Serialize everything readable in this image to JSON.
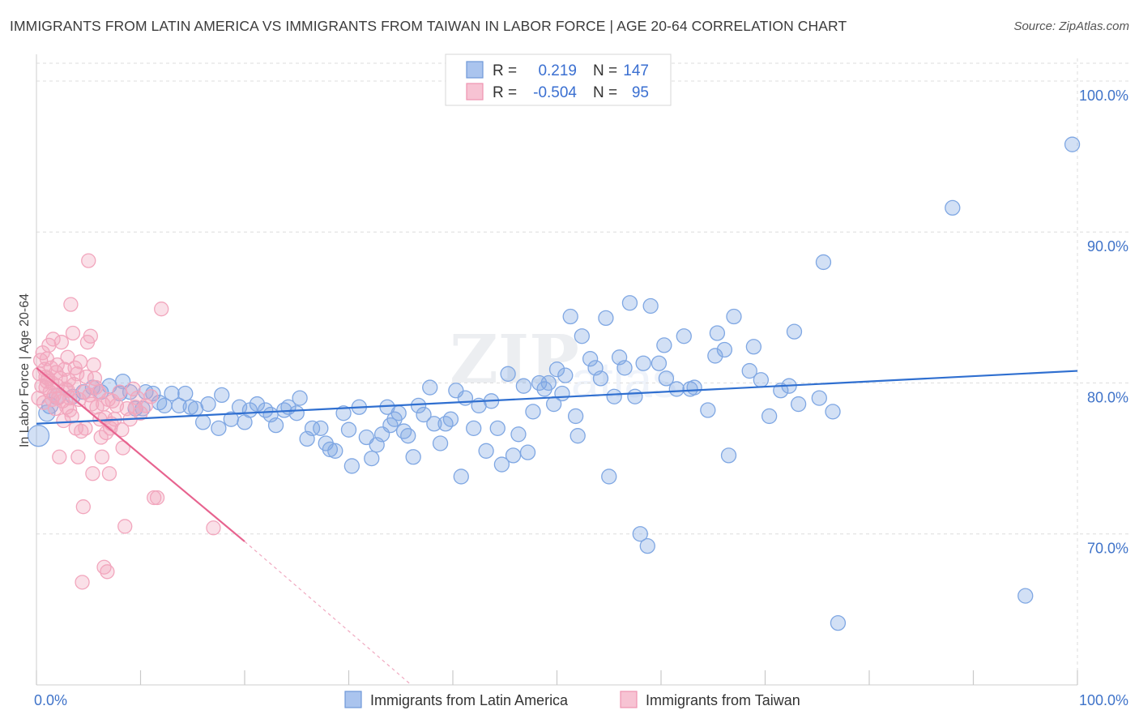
{
  "title": "IMMIGRANTS FROM LATIN AMERICA VS IMMIGRANTS FROM TAIWAN IN LABOR FORCE | AGE 20-64 CORRELATION CHART",
  "source": "Source: ZipAtlas.com",
  "watermark": "ZIPatlas",
  "chart_data": {
    "type": "scatter",
    "ylabel": "In Labor Force | Age 20-64",
    "xlim": [
      0,
      100
    ],
    "ylim": [
      60,
      101.5
    ],
    "x_tick_labels": [
      "0.0%",
      "100.0%"
    ],
    "y_ticks": [
      70,
      80,
      90,
      100
    ],
    "y_tick_labels": [
      "70.0%",
      "80.0%",
      "90.0%",
      "100.0%"
    ],
    "grid": true,
    "legend_position": "top-center",
    "legend": [
      {
        "r_label": "R =",
        "r_value": "0.219",
        "n_label": "N =",
        "n_value": "147"
      },
      {
        "r_label": "R =",
        "r_value": "-0.504",
        "n_label": "N =",
        "n_value": "95"
      }
    ],
    "series": [
      {
        "name": "Immigrants from Latin America",
        "color": "#7fa7e3",
        "line_color": "#2f6fd0",
        "trend": {
          "x0": 0,
          "y0": 77.3,
          "x1": 100,
          "y1": 80.8
        },
        "points": [
          [
            0.2,
            76.5
          ],
          [
            1.0,
            78.0
          ],
          [
            1.3,
            78.5
          ],
          [
            2.0,
            79.1
          ],
          [
            3.5,
            79.1
          ],
          [
            4.5,
            79.4
          ],
          [
            5.4,
            79.7
          ],
          [
            6.2,
            79.4
          ],
          [
            7.0,
            79.8
          ],
          [
            8.0,
            79.3
          ],
          [
            8.3,
            80.1
          ],
          [
            9.0,
            79.4
          ],
          [
            9.5,
            78.3
          ],
          [
            10.2,
            78.3
          ],
          [
            10.5,
            79.4
          ],
          [
            11.2,
            79.3
          ],
          [
            11.8,
            78.7
          ],
          [
            12.3,
            78.5
          ],
          [
            13.0,
            79.3
          ],
          [
            13.7,
            78.5
          ],
          [
            14.3,
            79.3
          ],
          [
            14.8,
            78.4
          ],
          [
            15.3,
            78.3
          ],
          [
            16.0,
            77.4
          ],
          [
            16.5,
            78.6
          ],
          [
            17.5,
            77.0
          ],
          [
            17.8,
            79.2
          ],
          [
            18.7,
            77.6
          ],
          [
            19.5,
            78.4
          ],
          [
            20.0,
            77.4
          ],
          [
            20.5,
            78.2
          ],
          [
            21.2,
            78.6
          ],
          [
            22.0,
            78.2
          ],
          [
            22.5,
            77.9
          ],
          [
            23.0,
            77.2
          ],
          [
            23.8,
            78.2
          ],
          [
            24.2,
            78.4
          ],
          [
            25.0,
            78.0
          ],
          [
            25.3,
            79.0
          ],
          [
            26.0,
            76.3
          ],
          [
            26.5,
            77.0
          ],
          [
            27.3,
            77.0
          ],
          [
            27.8,
            76.0
          ],
          [
            28.2,
            75.6
          ],
          [
            28.7,
            75.5
          ],
          [
            29.5,
            78.0
          ],
          [
            30.0,
            76.9
          ],
          [
            30.3,
            74.5
          ],
          [
            31.0,
            78.4
          ],
          [
            31.7,
            76.4
          ],
          [
            32.2,
            75.0
          ],
          [
            32.7,
            75.9
          ],
          [
            33.2,
            76.6
          ],
          [
            33.7,
            78.4
          ],
          [
            34.0,
            77.2
          ],
          [
            34.4,
            77.6
          ],
          [
            34.8,
            78.0
          ],
          [
            35.3,
            76.8
          ],
          [
            35.7,
            76.5
          ],
          [
            36.2,
            75.1
          ],
          [
            36.7,
            78.5
          ],
          [
            37.2,
            77.9
          ],
          [
            37.8,
            79.7
          ],
          [
            38.2,
            77.3
          ],
          [
            38.8,
            76.0
          ],
          [
            39.3,
            77.3
          ],
          [
            39.8,
            77.6
          ],
          [
            40.3,
            79.5
          ],
          [
            40.8,
            73.8
          ],
          [
            41.2,
            79.0
          ],
          [
            42.0,
            77.0
          ],
          [
            42.5,
            78.5
          ],
          [
            43.2,
            75.5
          ],
          [
            43.7,
            78.8
          ],
          [
            44.3,
            77.0
          ],
          [
            44.7,
            74.6
          ],
          [
            45.3,
            80.6
          ],
          [
            45.8,
            75.2
          ],
          [
            46.3,
            76.6
          ],
          [
            46.8,
            79.8
          ],
          [
            47.2,
            75.4
          ],
          [
            47.7,
            78.1
          ],
          [
            48.3,
            80.0
          ],
          [
            48.8,
            79.6
          ],
          [
            49.2,
            80.0
          ],
          [
            49.7,
            78.6
          ],
          [
            50.0,
            80.9
          ],
          [
            50.5,
            79.3
          ],
          [
            50.8,
            80.5
          ],
          [
            51.3,
            84.4
          ],
          [
            51.8,
            77.8
          ],
          [
            52.0,
            76.5
          ],
          [
            52.4,
            83.1
          ],
          [
            53.2,
            81.6
          ],
          [
            53.7,
            81.0
          ],
          [
            54.2,
            80.3
          ],
          [
            54.7,
            84.3
          ],
          [
            55.0,
            73.8
          ],
          [
            55.5,
            79.1
          ],
          [
            56.0,
            81.7
          ],
          [
            56.5,
            81.0
          ],
          [
            57.0,
            85.3
          ],
          [
            57.5,
            79.1
          ],
          [
            58.0,
            70.0
          ],
          [
            58.3,
            81.3
          ],
          [
            58.7,
            69.2
          ],
          [
            59.0,
            85.1
          ],
          [
            59.8,
            81.3
          ],
          [
            60.3,
            82.5
          ],
          [
            60.5,
            80.3
          ],
          [
            61.5,
            79.6
          ],
          [
            62.2,
            83.1
          ],
          [
            62.8,
            79.6
          ],
          [
            63.2,
            79.7
          ],
          [
            64.5,
            78.2
          ],
          [
            65.2,
            81.8
          ],
          [
            65.4,
            83.3
          ],
          [
            66.1,
            82.2
          ],
          [
            66.5,
            75.2
          ],
          [
            67.0,
            84.4
          ],
          [
            68.5,
            80.8
          ],
          [
            68.9,
            82.4
          ],
          [
            69.6,
            80.2
          ],
          [
            70.4,
            77.8
          ],
          [
            71.5,
            79.5
          ],
          [
            72.3,
            79.8
          ],
          [
            72.8,
            83.4
          ],
          [
            73.2,
            78.6
          ],
          [
            75.2,
            79.0
          ],
          [
            75.6,
            88.0
          ],
          [
            76.5,
            78.1
          ],
          [
            77.0,
            64.1
          ],
          [
            88.0,
            91.6
          ],
          [
            95.0,
            65.9
          ],
          [
            99.5,
            95.8
          ]
        ]
      },
      {
        "name": "Immigrants from Taiwan",
        "color": "#f2a6bd",
        "line_color": "#e7638f",
        "trend": {
          "x0": 0,
          "y0": 81.0,
          "x1": 20,
          "y1": 69.5
        },
        "trend_dashed": {
          "x0": 20,
          "y0": 69.5,
          "x1": 36,
          "y1": 60.0
        },
        "points": [
          [
            0.2,
            79.0
          ],
          [
            0.3,
            80.6
          ],
          [
            0.4,
            81.5
          ],
          [
            0.5,
            79.8
          ],
          [
            0.6,
            82.0
          ],
          [
            0.7,
            78.7
          ],
          [
            0.8,
            80.9
          ],
          [
            0.9,
            79.7
          ],
          [
            1.0,
            81.6
          ],
          [
            1.1,
            80.3
          ],
          [
            1.2,
            82.5
          ],
          [
            1.3,
            79.4
          ],
          [
            1.4,
            81.0
          ],
          [
            1.5,
            80.0
          ],
          [
            1.6,
            82.9
          ],
          [
            1.7,
            79.2
          ],
          [
            1.8,
            78.3
          ],
          [
            1.9,
            80.7
          ],
          [
            2.0,
            81.2
          ],
          [
            2.1,
            79.0
          ],
          [
            2.2,
            75.1
          ],
          [
            2.3,
            80.3
          ],
          [
            2.4,
            82.7
          ],
          [
            2.5,
            78.8
          ],
          [
            2.6,
            77.5
          ],
          [
            2.7,
            80.9
          ],
          [
            2.8,
            79.6
          ],
          [
            2.9,
            78.4
          ],
          [
            3.0,
            81.7
          ],
          [
            3.1,
            80.2
          ],
          [
            3.2,
            79.0
          ],
          [
            3.3,
            85.2
          ],
          [
            3.4,
            77.8
          ],
          [
            3.5,
            83.3
          ],
          [
            3.6,
            79.9
          ],
          [
            3.7,
            81.0
          ],
          [
            3.8,
            77.0
          ],
          [
            3.9,
            80.6
          ],
          [
            4.0,
            75.1
          ],
          [
            4.1,
            78.9
          ],
          [
            4.2,
            81.4
          ],
          [
            4.3,
            76.8
          ],
          [
            4.4,
            66.8
          ],
          [
            4.5,
            71.8
          ],
          [
            4.6,
            79.4
          ],
          [
            4.7,
            77.0
          ],
          [
            4.8,
            80.4
          ],
          [
            4.9,
            82.7
          ],
          [
            5.0,
            88.1
          ],
          [
            5.1,
            79.2
          ],
          [
            5.2,
            83.1
          ],
          [
            5.3,
            78.6
          ],
          [
            5.4,
            74.0
          ],
          [
            5.5,
            81.2
          ],
          [
            5.6,
            80.3
          ],
          [
            5.7,
            79.7
          ],
          [
            5.8,
            78.4
          ],
          [
            6.0,
            79.4
          ],
          [
            6.1,
            77.6
          ],
          [
            6.2,
            76.4
          ],
          [
            6.3,
            75.1
          ],
          [
            6.4,
            78.6
          ],
          [
            6.5,
            67.8
          ],
          [
            6.6,
            77.7
          ],
          [
            6.7,
            76.7
          ],
          [
            6.8,
            67.5
          ],
          [
            6.9,
            78.9
          ],
          [
            7.0,
            74.0
          ],
          [
            7.1,
            77.0
          ],
          [
            7.2,
            77.3
          ],
          [
            7.3,
            78.8
          ],
          [
            7.5,
            77.6
          ],
          [
            7.7,
            78.5
          ],
          [
            8.0,
            79.4
          ],
          [
            8.2,
            76.9
          ],
          [
            8.3,
            75.7
          ],
          [
            8.5,
            70.5
          ],
          [
            8.7,
            78.3
          ],
          [
            9.0,
            77.6
          ],
          [
            9.3,
            79.6
          ],
          [
            9.5,
            78.4
          ],
          [
            9.7,
            79.0
          ],
          [
            10.0,
            78.0
          ],
          [
            10.5,
            78.5
          ],
          [
            11.0,
            79.1
          ],
          [
            11.3,
            72.4
          ],
          [
            11.6,
            72.4
          ],
          [
            12.0,
            84.9
          ],
          [
            17.0,
            70.4
          ],
          [
            3.2,
            78.2
          ],
          [
            1.0,
            80.1
          ],
          [
            2.0,
            79.8
          ],
          [
            1.5,
            78.9
          ],
          [
            0.9,
            80.4
          ],
          [
            3.0,
            79.5
          ]
        ]
      }
    ]
  },
  "bottom_legend": [
    {
      "label": "Immigrants from Latin America"
    },
    {
      "label": "Immigrants from Taiwan"
    }
  ]
}
